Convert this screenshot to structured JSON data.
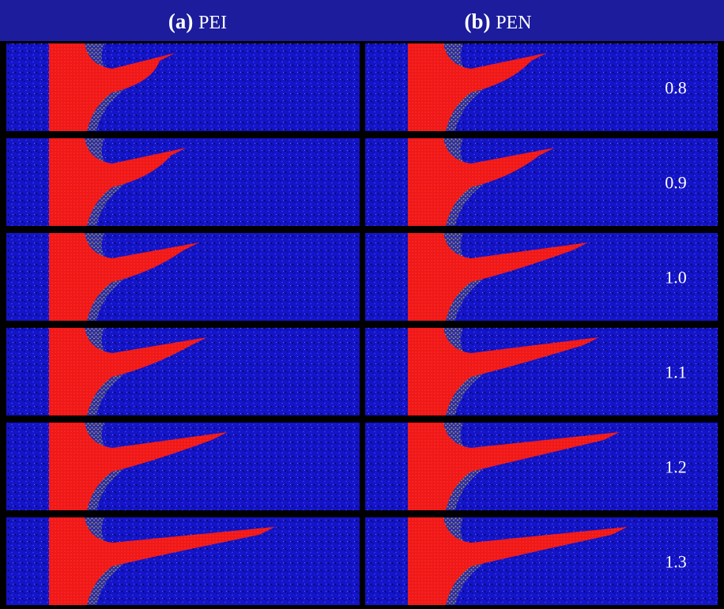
{
  "columns": [
    {
      "label": "(a)",
      "name": "PEI"
    },
    {
      "label": "(b)",
      "name": "PEN"
    }
  ],
  "rows": [
    "0.8",
    "0.9",
    "1.0",
    "1.1",
    "1.2",
    "1.3"
  ]
}
